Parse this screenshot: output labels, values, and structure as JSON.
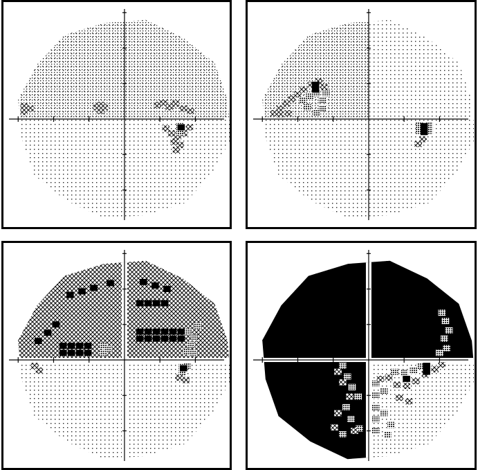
{
  "figure": {
    "panels": [
      {
        "id": "p1",
        "base_fill": "dots-sparse",
        "quad_fill": {
          "ul": "dots",
          "ur": "dots",
          "ll": "dots-sparse",
          "lr": "dots-sparse"
        },
        "defects": [
          {
            "level": "hatch",
            "cells": [
              [
                -8.5,
                1.1
              ],
              [
                -8.5,
                0.6
              ],
              [
                -8.0,
                0.9
              ]
            ]
          },
          {
            "level": "hatch",
            "cells": [
              [
                -2.3,
                1.0
              ],
              [
                -2.0,
                0.7
              ],
              [
                -1.7,
                1.0
              ],
              [
                -2.0,
                1.2
              ]
            ]
          },
          {
            "level": "hatch",
            "cells": [
              [
                2.8,
                1.2
              ],
              [
                3.3,
                1.4
              ],
              [
                3.8,
                1.0
              ],
              [
                4.3,
                1.3
              ],
              [
                5.0,
                0.9
              ],
              [
                5.6,
                0.7
              ]
            ]
          },
          {
            "level": "hatch",
            "cells": [
              [
                3.5,
                -0.8
              ],
              [
                4.0,
                -1.2
              ],
              [
                4.5,
                -1.5
              ],
              [
                5.0,
                -1.2
              ],
              [
                5.5,
                -0.7
              ],
              [
                4.2,
                -1.9
              ],
              [
                4.7,
                -2.2
              ],
              [
                4.4,
                -2.6
              ]
            ]
          },
          {
            "level": "dense",
            "cells": [
              [
                4.7,
                -0.6
              ],
              [
                4.7,
                -1.1
              ]
            ]
          },
          {
            "level": "black",
            "cells": [
              [
                4.8,
                -0.7
              ]
            ]
          }
        ]
      },
      {
        "id": "p2",
        "base_fill": "dots-sparse",
        "quad_fill": {
          "ul": "dots",
          "ur": "dots-sparse",
          "ll": "dots-sparse",
          "lr": "dots-sparse"
        },
        "defects": [
          {
            "level": "hatch",
            "cells": [
              [
                -8.0,
                0.5
              ],
              [
                -7.5,
                0.9
              ],
              [
                -7.0,
                1.3
              ],
              [
                -6.5,
                1.7
              ],
              [
                -6.0,
                2.1
              ],
              [
                -5.5,
                2.5
              ],
              [
                -4.8,
                2.9
              ],
              [
                -4.2,
                3.2
              ],
              [
                -7.5,
                0.4
              ],
              [
                -6.8,
                0.5
              ],
              [
                -3.8,
                2.7
              ]
            ]
          },
          {
            "level": "dense",
            "cells": [
              [
                -5.6,
                1.6
              ],
              [
                -5.0,
                1.9
              ],
              [
                -4.4,
                2.2
              ],
              [
                -3.9,
                1.6
              ],
              [
                -3.9,
                0.9
              ],
              [
                -4.4,
                0.5
              ],
              [
                -5.2,
                1.0
              ],
              [
                -3.6,
                2.2
              ]
            ]
          },
          {
            "level": "black",
            "cells": [
              [
                -4.5,
                2.5
              ],
              [
                -4.5,
                2.9
              ]
            ]
          },
          {
            "level": "dense",
            "cells": [
              [
                4.3,
                -0.5
              ],
              [
                4.3,
                -1.0
              ],
              [
                5.1,
                -0.5
              ],
              [
                5.1,
                -1.0
              ]
            ]
          },
          {
            "level": "black",
            "cells": [
              [
                4.7,
                -0.6
              ],
              [
                4.7,
                -1.1
              ]
            ]
          },
          {
            "level": "hatch",
            "cells": [
              [
                4.6,
                -1.7
              ],
              [
                4.2,
                -2.1
              ]
            ]
          }
        ]
      },
      {
        "id": "p3",
        "base_fill": "dots-sparse",
        "quad_fill": {
          "ul": "hatch",
          "ur": "hatch",
          "ll": "dots-sparse",
          "lr": "dots-sparse"
        },
        "defects": [
          {
            "level": "black",
            "cells": [
              [
                -4.6,
                5.5
              ],
              [
                -3.6,
                5.8
              ],
              [
                -2.6,
                6.1
              ],
              [
                -1.2,
                6.5
              ],
              [
                1.6,
                6.6
              ],
              [
                2.6,
                6.3
              ],
              [
                3.6,
                6.0
              ],
              [
                -7.3,
                1.6
              ],
              [
                -6.5,
                2.3
              ],
              [
                -5.8,
                3.0
              ]
            ]
          },
          {
            "level": "black",
            "cells": [
              [
                -5.2,
                0.6
              ],
              [
                -4.5,
                0.6
              ],
              [
                -3.8,
                0.6
              ],
              [
                -3.1,
                0.6
              ],
              [
                -5.2,
                1.2
              ],
              [
                -4.5,
                1.2
              ],
              [
                -3.8,
                1.2
              ],
              [
                -3.1,
                1.2
              ]
            ]
          },
          {
            "level": "black",
            "cells": [
              [
                1.3,
                4.8
              ],
              [
                2.0,
                4.8
              ],
              [
                2.7,
                4.8
              ],
              [
                3.4,
                4.8
              ],
              [
                1.3,
                2.4
              ],
              [
                2.0,
                2.4
              ],
              [
                2.7,
                2.4
              ],
              [
                3.4,
                2.4
              ],
              [
                4.1,
                2.4
              ],
              [
                4.8,
                2.4
              ],
              [
                1.3,
                1.8
              ],
              [
                2.0,
                1.8
              ],
              [
                2.7,
                1.8
              ],
              [
                3.4,
                1.8
              ],
              [
                4.1,
                1.8
              ],
              [
                4.8,
                1.8
              ]
            ]
          },
          {
            "level": "dense",
            "cells": [
              [
                -1.8,
                0.6
              ],
              [
                -1.4,
                0.9
              ],
              [
                -1.8,
                1.2
              ],
              [
                5.4,
                2.4
              ],
              [
                5.9,
                1.9
              ],
              [
                5.6,
                1.3
              ],
              [
                5.3,
                0.7
              ],
              [
                5.8,
                0.6
              ],
              [
                6.2,
                2.9
              ]
            ]
          },
          {
            "level": "hatch",
            "cells": [
              [
                1.8,
                1.1
              ],
              [
                2.5,
                1.0
              ],
              [
                3.2,
                1.1
              ],
              [
                -8.1,
                0.4
              ],
              [
                -7.6,
                -0.5
              ],
              [
                -7.2,
                -0.9
              ]
            ]
          },
          {
            "level": "dense",
            "cells": [
              [
                4.9,
                -0.6
              ],
              [
                4.9,
                -1.1
              ],
              [
                5.3,
                -0.5
              ]
            ]
          },
          {
            "level": "black",
            "cells": [
              [
                5.0,
                -0.7
              ]
            ]
          },
          {
            "level": "hatch",
            "cells": [
              [
                4.6,
                -1.5
              ],
              [
                5.2,
                -1.7
              ]
            ]
          }
        ]
      },
      {
        "id": "p4",
        "base_fill": "dots-sparse",
        "quad_fill": {
          "ul": "black",
          "ur": "black",
          "ll": "black",
          "lr": "dots-sparse"
        },
        "defects": [
          {
            "level": "dense",
            "cells": [
              [
                6.0,
                0.6
              ],
              [
                6.6,
                1.0
              ],
              [
                6.4,
                1.8
              ],
              [
                6.8,
                2.5
              ],
              [
                6.5,
                3.3
              ],
              [
                6.2,
                4.0
              ]
            ]
          },
          {
            "level": "dense",
            "cells": [
              [
                -2.2,
                -0.5
              ],
              [
                -1.8,
                -1.4
              ],
              [
                -1.4,
                -2.3
              ],
              [
                -0.9,
                -3.1
              ],
              [
                -1.9,
                -4.0
              ],
              [
                -1.5,
                -5.0
              ],
              [
                -0.8,
                -5.8
              ],
              [
                -2.2,
                -6.3
              ]
            ]
          },
          {
            "level": "hatch",
            "cells": [
              [
                -2.6,
                -1.0
              ],
              [
                -2.2,
                -1.9
              ],
              [
                -1.6,
                -3.1
              ],
              [
                -2.6,
                -4.5
              ],
              [
                -2.9,
                -5.7
              ],
              [
                -1.2,
                -6.0
              ]
            ]
          },
          {
            "level": "dense",
            "cells": [
              [
                0.6,
                -2.0
              ],
              [
                0.6,
                -3.0
              ],
              [
                0.6,
                -4.0
              ],
              [
                0.6,
                -5.0
              ],
              [
                0.6,
                -6.0
              ],
              [
                1.3,
                -2.6
              ],
              [
                1.3,
                -4.5
              ],
              [
                1.9,
                -5.5
              ],
              [
                1.6,
                -6.3
              ]
            ]
          },
          {
            "level": "hatch",
            "cells": [
              [
                1.0,
                -1.6
              ],
              [
                1.7,
                -1.5
              ],
              [
                2.4,
                -2.1
              ],
              [
                3.2,
                -2.2
              ],
              [
                4.0,
                -1.8
              ],
              [
                4.8,
                -1.2
              ],
              [
                5.6,
                -0.8
              ],
              [
                6.2,
                -0.4
              ],
              [
                2.6,
                -3.2
              ],
              [
                3.4,
                -3.5
              ]
            ]
          },
          {
            "level": "dense",
            "cells": [
              [
                2.2,
                -1.0
              ],
              [
                3.0,
                -1.1
              ],
              [
                3.8,
                -0.9
              ],
              [
                4.4,
                -0.5
              ]
            ]
          },
          {
            "level": "black",
            "cells": [
              [
                3.2,
                -1.6
              ],
              [
                4.9,
                -0.5
              ],
              [
                4.9,
                -1.0
              ]
            ]
          }
        ]
      }
    ]
  }
}
